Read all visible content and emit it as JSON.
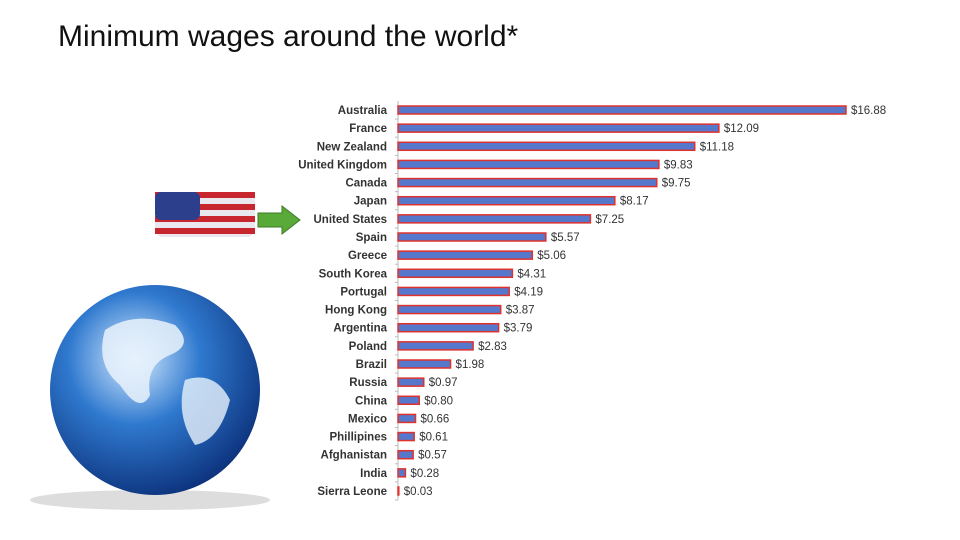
{
  "chart_data": {
    "type": "bar",
    "title": "Minimum wages around the world*",
    "categories": [
      "Australia",
      "France",
      "New Zealand",
      "United Kingdom",
      "Canada",
      "Japan",
      "United States",
      "Spain",
      "Greece",
      "South Korea",
      "Portugal",
      "Hong Kong",
      "Argentina",
      "Poland",
      "Brazil",
      "Russia",
      "China",
      "Mexico",
      "Phillipines",
      "Afghanistan",
      "India",
      "Sierra Leone"
    ],
    "values": [
      16.88,
      12.09,
      11.18,
      9.83,
      9.75,
      8.17,
      7.25,
      5.57,
      5.06,
      4.31,
      4.19,
      3.87,
      3.79,
      2.83,
      1.98,
      0.97,
      0.8,
      0.66,
      0.61,
      0.57,
      0.28,
      0.03
    ],
    "value_labels": [
      "$16.88",
      "$12.09",
      "$11.18",
      "$9.83",
      "$9.75",
      "$8.17",
      "$7.25",
      "$5.57",
      "$5.06",
      "$4.31",
      "$4.19",
      "$3.87",
      "$3.79",
      "$2.83",
      "$1.98",
      "$0.97",
      "$0.80",
      "$0.66",
      "$0.61",
      "$0.57",
      "$0.28",
      "$0.03"
    ],
    "color": "#5678cc",
    "edge_color": "#e0322c"
  }
}
